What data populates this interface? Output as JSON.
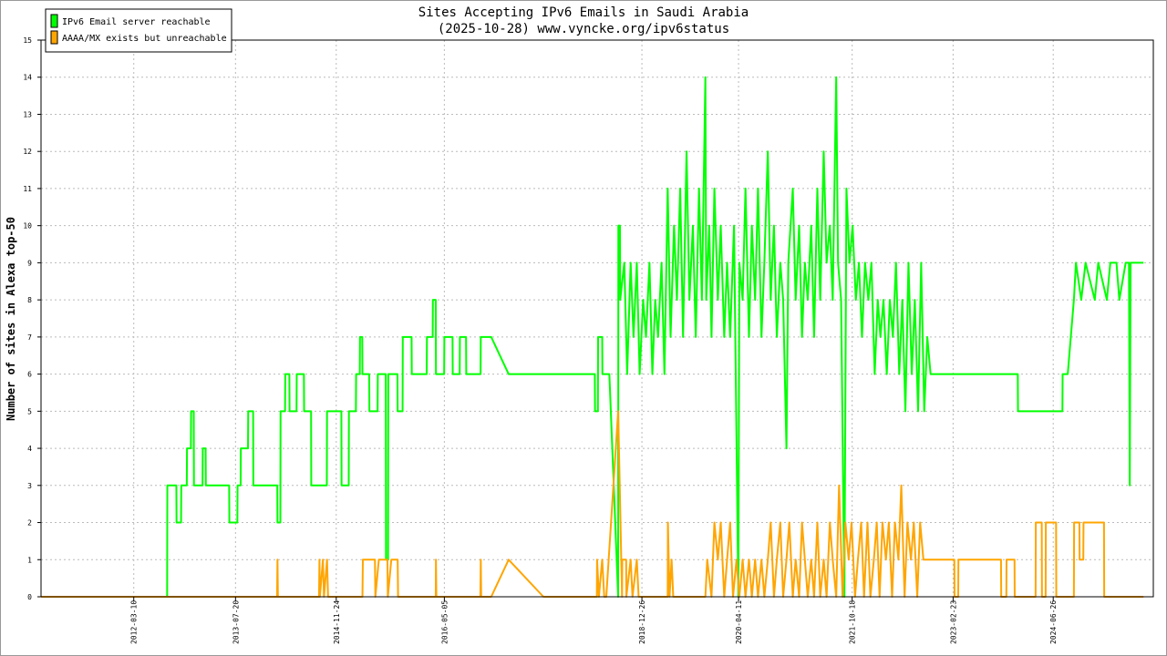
{
  "chart_data": {
    "type": "line",
    "title": "Sites Accepting IPv6 Emails in Saudi Arabia",
    "subtitle": "(2025-10-28) www.vyncke.org/ipv6status",
    "y_label": "Number of sites in Alexa top-50",
    "xlim": [
      "2010-12-13",
      "2025-10-28"
    ],
    "xticks": [
      "2012-03-10",
      "2013-07-20",
      "2014-11-24",
      "2016-05-05",
      "2018-12-26",
      "2020-04-11",
      "2021-10-18",
      "2023-02-23",
      "2024-06-26"
    ],
    "ylim": [
      0,
      15
    ],
    "yticks": [
      0,
      1,
      2,
      3,
      4,
      5,
      6,
      7,
      8,
      9,
      10,
      11,
      12,
      13,
      14,
      15
    ],
    "grid": true,
    "legend": "upper left",
    "series": [
      {
        "name": "IPv6 Email server reachable",
        "color": "#00ff00",
        "x": [
          "2010-12-13",
          "2012-08-20",
          "2012-08-21",
          "2012-10-04",
          "2012-10-05",
          "2012-10-27",
          "2012-10-28",
          "2012-11-24",
          "2012-11-25",
          "2012-12-14",
          "2012-12-15",
          "2012-12-28",
          "2012-12-29",
          "2013-02-09",
          "2013-02-10",
          "2013-02-24",
          "2013-02-25",
          "2013-06-19",
          "2013-06-20",
          "2013-07-29",
          "2013-07-30",
          "2013-08-14",
          "2013-08-15",
          "2013-09-19",
          "2013-09-20",
          "2013-10-14",
          "2013-10-15",
          "2014-02-09",
          "2014-02-10",
          "2014-02-24",
          "2014-02-25",
          "2014-03-19",
          "2014-03-20",
          "2014-04-09",
          "2014-04-10",
          "2014-05-14",
          "2014-05-15",
          "2014-06-19",
          "2014-06-20",
          "2014-07-24",
          "2014-07-25",
          "2014-10-09",
          "2014-10-10",
          "2014-12-19",
          "2014-12-20",
          "2015-01-24",
          "2015-01-25",
          "2015-02-28",
          "2015-03-01",
          "2015-03-19",
          "2015-03-20",
          "2015-03-31",
          "2015-04-01",
          "2015-05-04",
          "2015-05-05",
          "2015-06-14",
          "2015-06-15",
          "2015-07-24",
          "2015-07-25",
          "2015-08-04",
          "2015-08-05",
          "2015-09-19",
          "2015-09-20",
          "2015-10-14",
          "2015-10-15",
          "2015-11-27",
          "2015-11-28",
          "2016-02-09",
          "2016-02-10",
          "2016-03-09",
          "2016-03-10",
          "2016-03-24",
          "2016-03-25",
          "2016-05-04",
          "2016-05-05",
          "2016-06-14",
          "2016-06-15",
          "2016-07-19",
          "2016-07-20",
          "2016-08-19",
          "2016-08-20",
          "2016-10-29",
          "2016-10-30",
          "2016-12-20",
          "2017-03-15",
          "2018-05-10",
          "2018-05-11",
          "2018-05-25",
          "2018-05-26",
          "2018-06-15",
          "2018-06-16",
          "2018-07-20",
          "2018-09-01",
          "2018-09-02",
          "2018-09-10",
          "2018-09-11",
          "2018-10-01",
          "2018-10-15",
          "2018-11-01",
          "2018-11-15",
          "2018-12-01",
          "2018-12-15",
          "2019-01-01",
          "2019-01-15",
          "2019-02-01",
          "2019-02-15",
          "2019-03-01",
          "2019-03-15",
          "2019-04-01",
          "2019-04-15",
          "2019-05-01",
          "2019-05-15",
          "2019-06-01",
          "2019-06-15",
          "2019-07-01",
          "2019-07-15",
          "2019-08-01",
          "2019-08-15",
          "2019-09-01",
          "2019-09-15",
          "2019-10-01",
          "2019-10-15",
          "2019-11-01",
          "2019-11-05",
          "2019-11-20",
          "2019-12-01",
          "2019-12-15",
          "2020-01-01",
          "2020-01-15",
          "2020-02-01",
          "2020-02-15",
          "2020-03-01",
          "2020-03-20",
          "2020-04-10",
          "2020-04-15",
          "2020-05-01",
          "2020-05-15",
          "2020-06-01",
          "2020-06-15",
          "2020-07-01",
          "2020-07-15",
          "2020-08-01",
          "2020-08-15",
          "2020-09-01",
          "2020-09-15",
          "2020-10-01",
          "2020-10-15",
          "2020-11-01",
          "2020-11-15",
          "2020-12-01",
          "2020-12-10",
          "2021-01-01",
          "2021-01-15",
          "2021-02-01",
          "2021-02-15",
          "2021-03-01",
          "2021-03-15",
          "2021-04-01",
          "2021-04-15",
          "2021-05-01",
          "2021-05-15",
          "2021-06-01",
          "2021-06-15",
          "2021-07-01",
          "2021-07-15",
          "2021-08-01",
          "2021-08-10",
          "2021-08-25",
          "2021-09-10",
          "2021-09-20",
          "2021-10-05",
          "2021-10-20",
          "2021-11-05",
          "2021-11-20",
          "2021-12-05",
          "2021-12-20",
          "2022-01-05",
          "2022-01-20",
          "2022-02-05",
          "2022-02-20",
          "2022-03-05",
          "2022-03-20",
          "2022-04-05",
          "2022-04-20",
          "2022-05-05",
          "2022-05-20",
          "2022-06-05",
          "2022-06-20",
          "2022-07-05",
          "2022-07-20",
          "2022-08-05",
          "2022-08-20",
          "2022-09-05",
          "2022-09-20",
          "2022-10-05",
          "2022-10-20",
          "2022-11-05",
          "2024-01-05",
          "2024-01-06",
          "2024-08-10",
          "2024-08-11",
          "2024-09-05",
          "2024-09-20",
          "2024-10-05",
          "2024-10-15",
          "2024-11-10",
          "2024-12-01",
          "2025-01-15",
          "2025-02-01",
          "2025-03-15",
          "2025-04-01",
          "2025-05-01",
          "2025-05-15",
          "2025-06-15",
          "2025-07-01",
          "2025-07-05",
          "2025-07-09",
          "2025-09-10"
        ],
        "values": [
          0,
          0,
          3,
          3,
          2,
          2,
          3,
          3,
          4,
          4,
          5,
          5,
          3,
          3,
          4,
          4,
          3,
          3,
          2,
          2,
          3,
          3,
          4,
          4,
          5,
          5,
          3,
          3,
          2,
          2,
          5,
          5,
          6,
          6,
          5,
          5,
          6,
          6,
          5,
          5,
          3,
          3,
          5,
          5,
          3,
          3,
          5,
          5,
          6,
          6,
          7,
          7,
          6,
          6,
          5,
          5,
          6,
          6,
          1,
          1,
          6,
          6,
          5,
          5,
          7,
          7,
          6,
          6,
          7,
          7,
          8,
          8,
          6,
          6,
          7,
          7,
          6,
          6,
          7,
          7,
          6,
          6,
          7,
          7,
          6,
          6,
          5,
          5,
          7,
          7,
          6,
          6,
          0,
          10,
          10,
          8,
          9,
          6,
          9,
          7,
          9,
          6,
          8,
          7,
          9,
          6,
          8,
          7,
          9,
          6,
          11,
          7,
          10,
          8,
          11,
          7,
          12,
          8,
          10,
          7,
          11,
          8,
          14,
          8,
          10,
          7,
          11,
          8,
          10,
          7,
          9,
          7,
          10,
          0,
          9,
          8,
          11,
          7,
          10,
          8,
          11,
          7,
          9,
          12,
          8,
          10,
          7,
          9,
          8,
          4,
          9,
          11,
          8,
          10,
          7,
          9,
          8,
          10,
          7,
          11,
          8,
          12,
          9,
          10,
          8,
          14,
          9,
          8,
          0,
          11,
          9,
          10,
          8,
          9,
          7,
          9,
          8,
          9,
          6,
          8,
          7,
          8,
          6,
          8,
          7,
          9,
          6,
          8,
          5,
          9,
          6,
          8,
          5,
          9,
          5,
          7,
          6,
          6,
          5,
          5,
          6,
          6,
          7,
          8,
          9,
          8,
          9,
          8,
          9,
          8,
          9,
          9,
          8,
          9,
          9,
          3,
          9,
          9
        ]
      },
      {
        "name": "AAAA/MX exists but unreachable",
        "color": "#ffa500",
        "x": [
          "2010-12-13",
          "2014-02-08",
          "2014-02-10",
          "2014-02-12",
          "2014-09-01",
          "2014-09-03",
          "2014-09-05",
          "2014-09-20",
          "2014-09-25",
          "2014-10-10",
          "2014-10-15",
          "2015-04-01",
          "2015-04-03",
          "2015-06-01",
          "2015-06-03",
          "2015-06-20",
          "2015-08-01",
          "2015-08-03",
          "2015-08-20",
          "2015-09-20",
          "2015-09-22",
          "2016-03-24",
          "2016-03-25",
          "2016-03-27",
          "2016-10-28",
          "2016-10-30",
          "2016-11-01",
          "2016-12-20",
          "2017-03-15",
          "2017-09-01",
          "2018-05-20",
          "2018-05-21",
          "2018-05-30",
          "2018-06-15",
          "2018-06-25",
          "2018-07-05",
          "2018-09-01",
          "2018-09-20",
          "2018-09-21",
          "2018-10-10",
          "2018-10-11",
          "2018-11-01",
          "2018-11-10",
          "2018-12-01",
          "2018-12-10",
          "2019-05-01",
          "2019-05-02",
          "2019-05-10",
          "2019-05-20",
          "2019-05-28",
          "2019-11-01",
          "2019-11-10",
          "2019-12-01",
          "2019-12-15",
          "2020-01-01",
          "2020-01-15",
          "2020-02-01",
          "2020-02-15",
          "2020-03-01",
          "2020-03-15",
          "2020-04-01",
          "2020-04-15",
          "2020-05-01",
          "2020-05-15",
          "2020-06-01",
          "2020-06-15",
          "2020-07-01",
          "2020-07-15",
          "2020-08-01",
          "2020-08-15",
          "2020-09-01",
          "2020-09-15",
          "2020-10-01",
          "2020-10-15",
          "2020-11-01",
          "2020-11-15",
          "2020-12-01",
          "2020-12-15",
          "2021-01-01",
          "2021-01-15",
          "2021-02-01",
          "2021-02-15",
          "2021-03-01",
          "2021-03-15",
          "2021-04-01",
          "2021-04-15",
          "2021-05-01",
          "2021-05-15",
          "2021-06-01",
          "2021-06-15",
          "2021-07-01",
          "2021-07-15",
          "2021-08-01",
          "2021-08-15",
          "2021-09-01",
          "2021-09-15",
          "2021-10-01",
          "2021-10-15",
          "2021-11-01",
          "2021-11-15",
          "2021-12-01",
          "2021-12-15",
          "2022-01-01",
          "2022-01-15",
          "2022-02-01",
          "2022-02-15",
          "2022-03-01",
          "2022-03-15",
          "2022-04-01",
          "2022-04-15",
          "2022-05-01",
          "2022-05-15",
          "2022-06-01",
          "2022-06-15",
          "2022-07-01",
          "2022-07-15",
          "2022-08-01",
          "2022-08-15",
          "2022-09-01",
          "2022-09-15",
          "2022-10-01",
          "2022-10-15",
          "2023-03-01",
          "2023-03-02",
          "2023-03-20",
          "2023-03-21",
          "2023-10-15",
          "2023-10-16",
          "2023-11-10",
          "2023-11-11",
          "2023-12-20",
          "2023-12-21",
          "2024-04-01",
          "2024-04-02",
          "2024-05-01",
          "2024-05-02",
          "2024-05-20",
          "2024-05-21",
          "2024-07-10",
          "2024-07-11",
          "2024-10-05",
          "2024-10-06",
          "2024-11-01",
          "2024-11-02",
          "2024-11-20",
          "2024-11-21",
          "2025-03-01",
          "2025-03-02",
          "2025-09-10"
        ],
        "values": [
          0,
          0,
          1,
          0,
          0,
          1,
          0,
          1,
          0,
          1,
          0,
          0,
          1,
          1,
          0,
          1,
          1,
          0,
          1,
          1,
          0,
          0,
          1,
          0,
          0,
          1,
          0,
          0,
          1,
          0,
          0,
          1,
          0,
          1,
          0,
          0,
          5,
          0,
          1,
          1,
          0,
          1,
          0,
          1,
          0,
          0,
          2,
          0,
          1,
          0,
          0,
          1,
          0,
          2,
          1,
          2,
          0,
          1,
          2,
          0,
          1,
          0,
          1,
          0,
          1,
          0,
          1,
          0,
          1,
          0,
          1,
          2,
          0,
          1,
          2,
          0,
          1,
          2,
          0,
          1,
          0,
          2,
          1,
          0,
          1,
          0,
          2,
          0,
          1,
          0,
          2,
          1,
          0,
          3,
          0,
          2,
          1,
          2,
          0,
          1,
          2,
          0,
          2,
          0,
          1,
          2,
          0,
          2,
          1,
          2,
          0,
          2,
          1,
          3,
          0,
          2,
          1,
          2,
          0,
          2,
          1,
          1,
          1,
          0,
          0,
          1,
          1,
          0,
          0,
          1,
          1,
          0,
          0,
          2,
          2,
          0,
          0,
          2,
          2,
          0,
          0,
          2,
          2,
          1,
          1,
          2,
          2,
          0,
          0
        ]
      }
    ]
  }
}
